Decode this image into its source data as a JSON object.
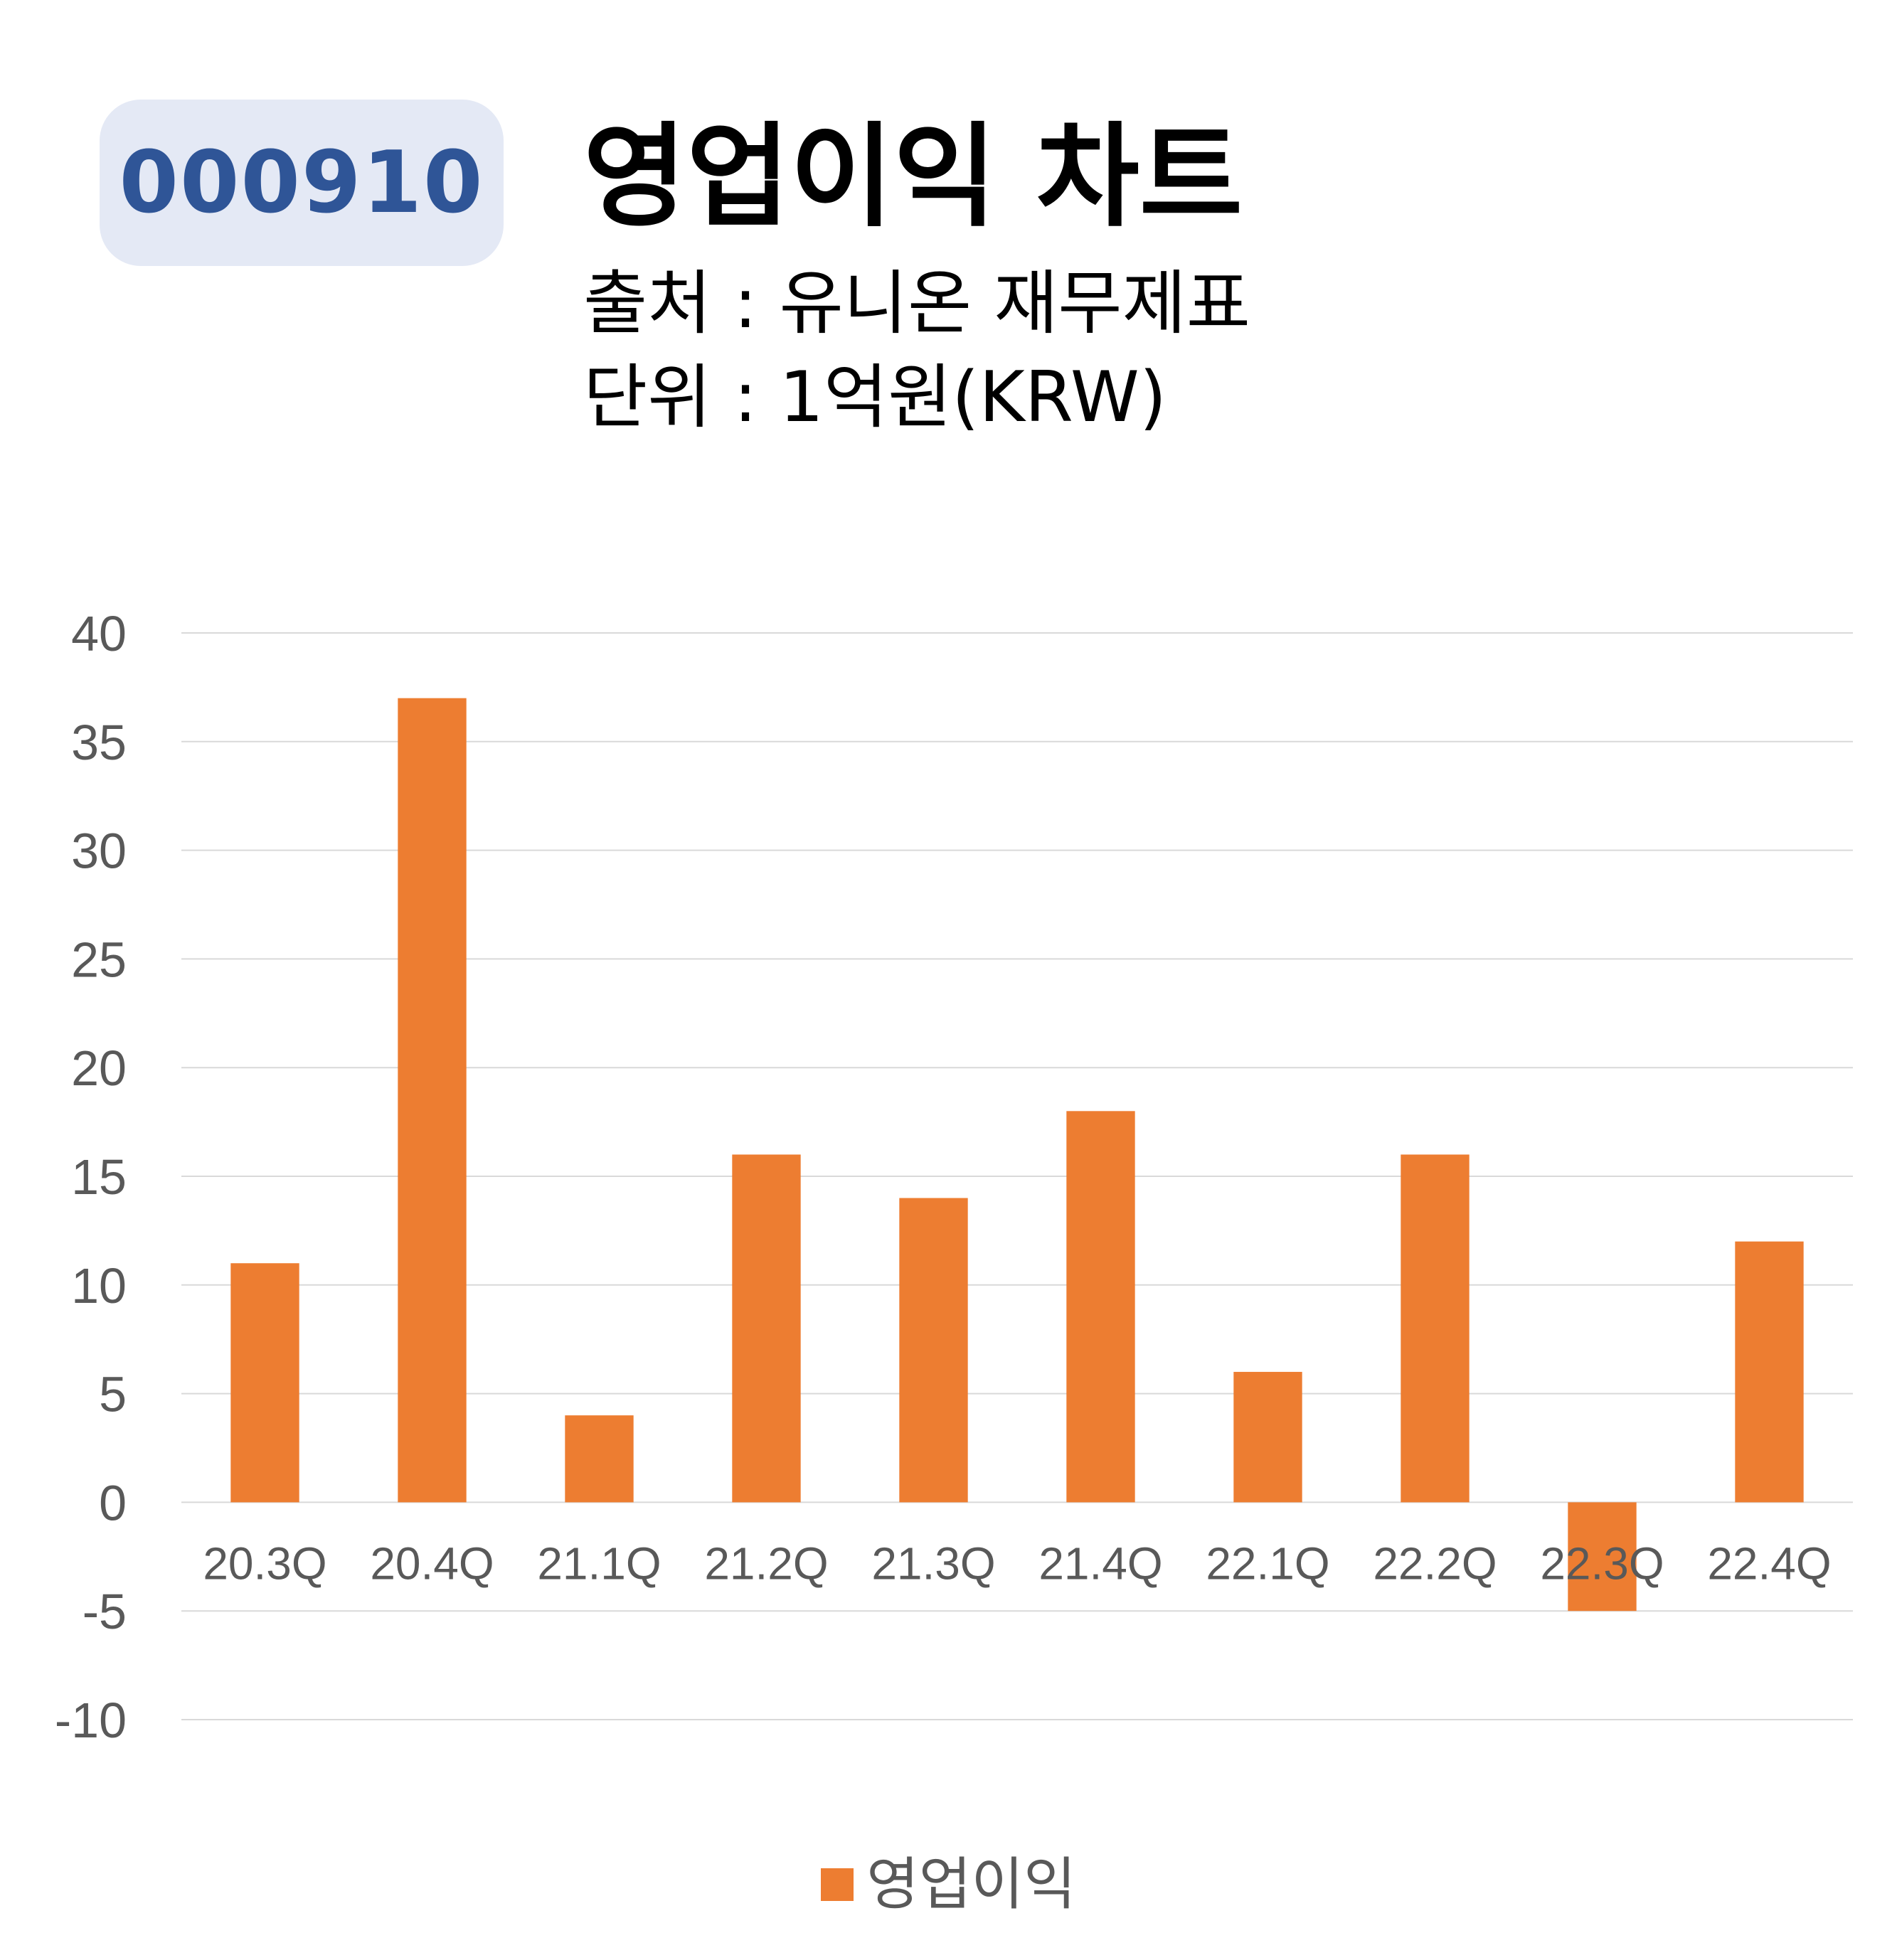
{
  "header": {
    "ticker": "000910",
    "title": "영업이익 차트",
    "source": "출처 : 유니온 재무제표",
    "unit": "단위 : 1억원(KRW)"
  },
  "colors": {
    "bar": "#ed7d31",
    "badge_bg": "#e4e9f5",
    "badge_text": "#2f5597",
    "grid": "#d9d9d9",
    "tick_text": "#595959"
  },
  "chart_data": {
    "type": "bar",
    "title": "영업이익 차트",
    "categories": [
      "20.3Q",
      "20.4Q",
      "21.1Q",
      "21.2Q",
      "21.3Q",
      "21.4Q",
      "22.1Q",
      "22.2Q",
      "22.3Q",
      "22.4Q"
    ],
    "series": [
      {
        "name": "영업이익",
        "values": [
          11,
          37,
          4,
          16,
          14,
          18,
          6,
          16,
          -5,
          12
        ]
      }
    ],
    "ylim": [
      -10,
      40
    ],
    "yticks": [
      40,
      35,
      30,
      25,
      20,
      15,
      10,
      5,
      0,
      -5,
      -10
    ],
    "grid": true,
    "legend": "bottom-center",
    "xlabel": "",
    "ylabel": ""
  }
}
